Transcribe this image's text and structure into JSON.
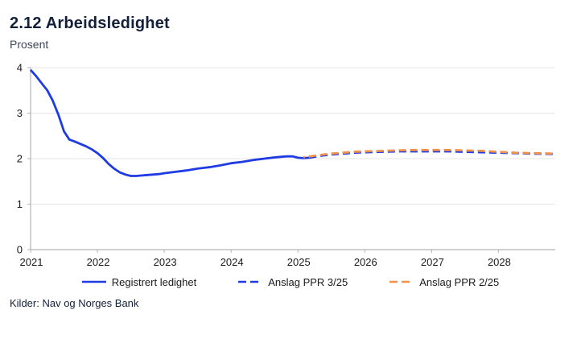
{
  "header": {
    "title": "2.12 Arbeidsledighet",
    "subtitle": "Prosent"
  },
  "footer": {
    "source": "Kilder: Nav og Norges Bank"
  },
  "legend": [
    {
      "label": "Registrert ledighet",
      "color": "#1f3be3",
      "style": "solid"
    },
    {
      "label": "Anslag PPR 3/25",
      "color": "#1f3be3",
      "style": "dashed"
    },
    {
      "label": "Anslag PPR 2/25",
      "color": "#f0914c",
      "style": "dashed"
    }
  ],
  "chart_data": {
    "type": "line",
    "title": "2.12 Arbeidsledighet",
    "ylabel": "Prosent",
    "xlim": [
      2021,
      2028.85
    ],
    "ylim": [
      0,
      4
    ],
    "y_ticks": [
      0,
      1,
      2,
      3,
      4
    ],
    "x_ticks": [
      2021,
      2022,
      2023,
      2024,
      2025,
      2026,
      2027,
      2028
    ],
    "grid": "horizontal",
    "legend_position": "bottom",
    "colors": {
      "grid": "#e4e4e4",
      "axis": "#b3b3b3",
      "tick_label": "#1a1a1a"
    },
    "series": [
      {
        "name": "Registrert ledighet",
        "color": "#1f3be3",
        "style": "solid",
        "x": [
          2021.0,
          2021.08,
          2021.17,
          2021.25,
          2021.33,
          2021.42,
          2021.5,
          2021.58,
          2021.67,
          2021.75,
          2021.83,
          2021.92,
          2022.0,
          2022.08,
          2022.17,
          2022.25,
          2022.33,
          2022.42,
          2022.5,
          2022.58,
          2022.67,
          2022.75,
          2022.83,
          2022.92,
          2023.0,
          2023.17,
          2023.33,
          2023.5,
          2023.67,
          2023.83,
          2024.0,
          2024.17,
          2024.33,
          2024.5,
          2024.67,
          2024.83,
          2024.92,
          2025.0,
          2025.08,
          2025.17
        ],
        "y": [
          3.95,
          3.82,
          3.65,
          3.5,
          3.28,
          2.95,
          2.6,
          2.42,
          2.37,
          2.32,
          2.27,
          2.2,
          2.12,
          2.02,
          1.88,
          1.78,
          1.7,
          1.65,
          1.62,
          1.62,
          1.63,
          1.64,
          1.65,
          1.66,
          1.68,
          1.71,
          1.74,
          1.78,
          1.81,
          1.85,
          1.9,
          1.93,
          1.97,
          2.0,
          2.03,
          2.05,
          2.05,
          2.02,
          2.01,
          2.02
        ]
      },
      {
        "name": "Anslag PPR 3/25",
        "color": "#1f3be3",
        "style": "dashed",
        "dash_offset": 0,
        "x": [
          2025.17,
          2025.33,
          2025.5,
          2025.67,
          2025.83,
          2026.0,
          2026.25,
          2026.5,
          2026.75,
          2027.0,
          2027.25,
          2027.5,
          2027.75,
          2028.0,
          2028.25,
          2028.5,
          2028.83
        ],
        "y": [
          2.02,
          2.06,
          2.09,
          2.11,
          2.13,
          2.14,
          2.15,
          2.16,
          2.16,
          2.16,
          2.16,
          2.15,
          2.14,
          2.13,
          2.12,
          2.11,
          2.1
        ]
      },
      {
        "name": "Anslag PPR 2/25",
        "color": "#f0914c",
        "style": "dashed",
        "dash_offset": 7,
        "x": [
          2025.08,
          2025.33,
          2025.5,
          2025.67,
          2025.83,
          2026.0,
          2026.25,
          2026.5,
          2026.75,
          2027.0,
          2027.25,
          2027.5,
          2027.75,
          2028.0,
          2028.25,
          2028.5,
          2028.83
        ],
        "y": [
          2.03,
          2.08,
          2.11,
          2.13,
          2.15,
          2.16,
          2.17,
          2.18,
          2.19,
          2.19,
          2.19,
          2.18,
          2.17,
          2.15,
          2.13,
          2.12,
          2.11
        ]
      }
    ]
  }
}
